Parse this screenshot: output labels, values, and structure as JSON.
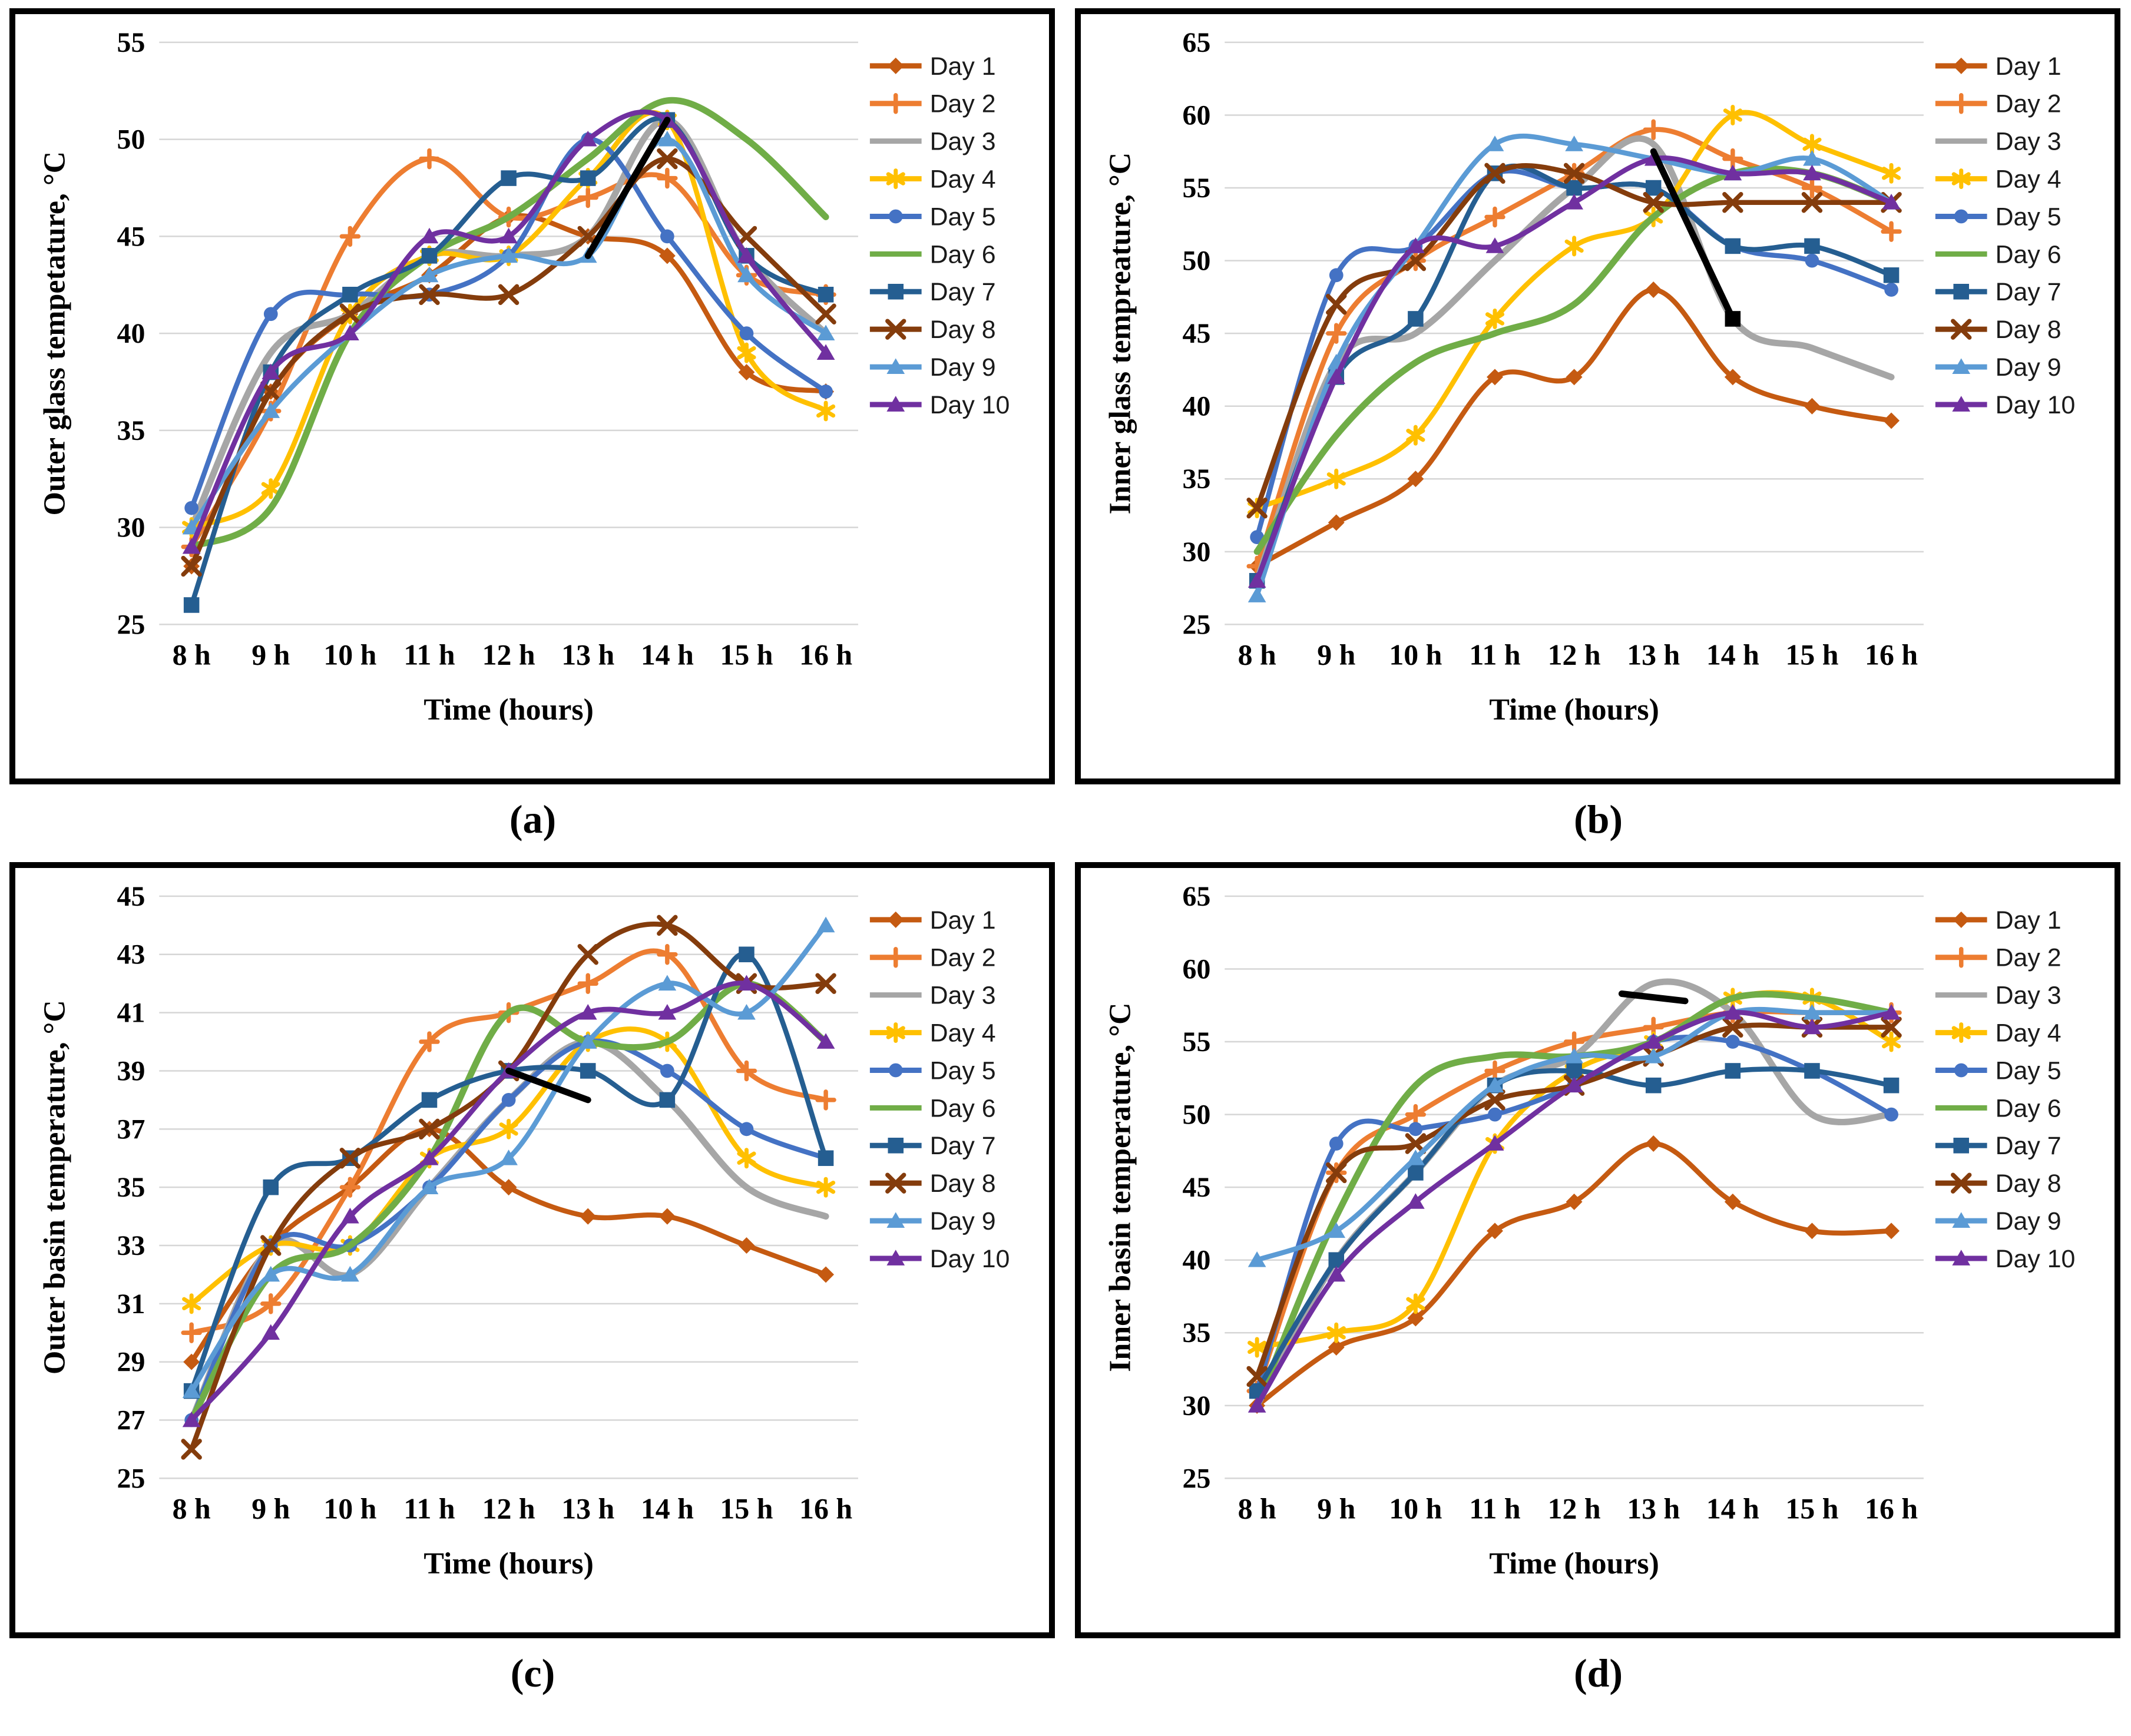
{
  "days": [
    {
      "label": "Day 1",
      "color": "#C55A11",
      "marker": "diamond"
    },
    {
      "label": "Day 2",
      "color": "#ED7D31",
      "marker": "plus"
    },
    {
      "label": "Day 3",
      "color": "#A6A6A6",
      "marker": "none"
    },
    {
      "label": "Day 4",
      "color": "#FFC000",
      "marker": "asterisk"
    },
    {
      "label": "Day 5",
      "color": "#4472C4",
      "marker": "circle"
    },
    {
      "label": "Day 6",
      "color": "#70AD47",
      "marker": "none"
    },
    {
      "label": "Day 7",
      "color": "#255E91",
      "marker": "square"
    },
    {
      "label": "Day 8",
      "color": "#843C0C",
      "marker": "x"
    },
    {
      "label": "Day 9",
      "color": "#5B9BD5",
      "marker": "triangle"
    },
    {
      "label": "Day 10",
      "color": "#7030A0",
      "marker": "triangle"
    }
  ],
  "chart_data": [
    {
      "id": "a",
      "caption": "(a)",
      "type": "line",
      "ylabel": "Outer glass tempetature, °C",
      "xlabel": "Time (hours)",
      "categories": [
        "8 h",
        "9 h",
        "10 h",
        "11 h",
        "12 h",
        "13 h",
        "14 h",
        "15 h",
        "16 h"
      ],
      "ylim": [
        25,
        55
      ],
      "ytick_step": 5,
      "grid": true,
      "legend_position": "right",
      "series": [
        {
          "name": "Day 1",
          "values": [
            28,
            37,
            41,
            43,
            46,
            45,
            44,
            38,
            37
          ]
        },
        {
          "name": "Day 2",
          "values": [
            29,
            36,
            45,
            49,
            46,
            47,
            48,
            43,
            42
          ]
        },
        {
          "name": "Day 3",
          "values": [
            30,
            39,
            41,
            44,
            44,
            45,
            51,
            44,
            40
          ]
        },
        {
          "name": "Day 4",
          "values": [
            30,
            32,
            41,
            44,
            44,
            48,
            51,
            39,
            36
          ]
        },
        {
          "name": "Day 5",
          "values": [
            31,
            41,
            42,
            42,
            44,
            50,
            45,
            40,
            37
          ]
        },
        {
          "name": "Day 6",
          "values": [
            29,
            31,
            40,
            44,
            46,
            49,
            52,
            50,
            46
          ]
        },
        {
          "name": "Day 7",
          "values": [
            26,
            38,
            42,
            44,
            48,
            48,
            51,
            44,
            42
          ]
        },
        {
          "name": "Day 8",
          "values": [
            28,
            37,
            41,
            42,
            42,
            45,
            49,
            45,
            41
          ]
        },
        {
          "name": "Day 9",
          "values": [
            30,
            36,
            40,
            43,
            44,
            44,
            50,
            43,
            40
          ]
        },
        {
          "name": "Day 10",
          "values": [
            29,
            38,
            40,
            45,
            45,
            50,
            51,
            44,
            39
          ]
        }
      ],
      "black_segment": {
        "color": "#000000",
        "points": [
          [
            5,
            44
          ],
          [
            6,
            51
          ]
        ],
        "end_marker": "none"
      }
    },
    {
      "id": "b",
      "caption": "(b)",
      "type": "line",
      "ylabel": "Inner glass tempreature, °C",
      "xlabel": "Time (hours)",
      "categories": [
        "8 h",
        "9 h",
        "10 h",
        "11 h",
        "12 h",
        "13 h",
        "14 h",
        "15 h",
        "16 h"
      ],
      "ylim": [
        25,
        65
      ],
      "ytick_step": 5,
      "grid": true,
      "legend_position": "right",
      "series": [
        {
          "name": "Day 1",
          "values": [
            29,
            32,
            35,
            42,
            42,
            48,
            42,
            40,
            39
          ]
        },
        {
          "name": "Day 2",
          "values": [
            29,
            45,
            50,
            53,
            56,
            59,
            57,
            55,
            52
          ]
        },
        {
          "name": "Day 3",
          "values": [
            28,
            43,
            45,
            50,
            55,
            58,
            46,
            44,
            42
          ]
        },
        {
          "name": "Day 4",
          "values": [
            33,
            35,
            38,
            46,
            51,
            53,
            60,
            58,
            56
          ]
        },
        {
          "name": "Day 5",
          "values": [
            31,
            49,
            51,
            56,
            55,
            55,
            51,
            50,
            48
          ]
        },
        {
          "name": "Day 6",
          "values": [
            30,
            38,
            43,
            45,
            47,
            53,
            56,
            56,
            54
          ]
        },
        {
          "name": "Day 7",
          "values": [
            28,
            42,
            46,
            56,
            55,
            55,
            51,
            51,
            49
          ]
        },
        {
          "name": "Day 8",
          "values": [
            33,
            47,
            50,
            56,
            56,
            54,
            54,
            54,
            54
          ]
        },
        {
          "name": "Day 9",
          "values": [
            27,
            43,
            51,
            58,
            58,
            57,
            56,
            57,
            54
          ]
        },
        {
          "name": "Day 10",
          "values": [
            28,
            42,
            51,
            51,
            54,
            57,
            56,
            56,
            54
          ]
        }
      ],
      "black_segment": {
        "color": "#000000",
        "points": [
          [
            5,
            57.5
          ],
          [
            6,
            46
          ]
        ],
        "end_marker": "square"
      }
    },
    {
      "id": "c",
      "caption": "(c)",
      "type": "line",
      "ylabel": "Outer basin temperature, °C",
      "xlabel": "Time (hours)",
      "categories": [
        "8 h",
        "9 h",
        "10 h",
        "11 h",
        "12 h",
        "13 h",
        "14 h",
        "15 h",
        "16 h"
      ],
      "ylim": [
        25,
        45
      ],
      "ytick_step": 2,
      "grid": true,
      "legend_position": "right",
      "series": [
        {
          "name": "Day 1",
          "values": [
            29,
            33,
            35,
            37,
            35,
            34,
            34,
            33,
            32
          ]
        },
        {
          "name": "Day 2",
          "values": [
            30,
            31,
            35,
            40,
            41,
            42,
            43,
            39,
            38
          ]
        },
        {
          "name": "Day 3",
          "values": [
            27,
            33,
            32,
            35,
            38,
            40,
            38,
            35,
            34
          ]
        },
        {
          "name": "Day 4",
          "values": [
            31,
            33,
            33,
            36,
            37,
            40,
            40,
            36,
            35
          ]
        },
        {
          "name": "Day 5",
          "values": [
            27,
            33,
            33,
            35,
            38,
            40,
            39,
            37,
            36
          ]
        },
        {
          "name": "Day 6",
          "values": [
            27,
            32,
            33,
            36,
            41,
            40,
            40,
            42,
            40
          ]
        },
        {
          "name": "Day 7",
          "values": [
            28,
            35,
            36,
            38,
            39,
            39,
            38,
            43,
            36
          ]
        },
        {
          "name": "Day 8",
          "values": [
            26,
            33,
            36,
            37,
            39,
            43,
            44,
            42,
            42
          ]
        },
        {
          "name": "Day 9",
          "values": [
            28,
            32,
            32,
            35,
            36,
            40,
            42,
            41,
            44
          ]
        },
        {
          "name": "Day 10",
          "values": [
            27,
            30,
            34,
            36,
            39,
            41,
            41,
            42,
            40
          ]
        }
      ],
      "black_segment": {
        "color": "#000000",
        "points": [
          [
            4,
            39
          ],
          [
            5,
            38
          ]
        ],
        "end_marker": "none"
      }
    },
    {
      "id": "d",
      "caption": "(d)",
      "type": "line",
      "ylabel": "Inner basin temperature, °C",
      "xlabel": "Time (hours)",
      "categories": [
        "8 h",
        "9 h",
        "10 h",
        "11 h",
        "12 h",
        "13 h",
        "14 h",
        "15 h",
        "16 h"
      ],
      "ylim": [
        25,
        65
      ],
      "ytick_step": 5,
      "grid": true,
      "legend_position": "right",
      "series": [
        {
          "name": "Day 1",
          "values": [
            30,
            34,
            36,
            42,
            44,
            48,
            44,
            42,
            42
          ]
        },
        {
          "name": "Day 2",
          "values": [
            31,
            46,
            50,
            53,
            55,
            56,
            57,
            57,
            57
          ]
        },
        {
          "name": "Day 3",
          "values": [
            30,
            40,
            46,
            52,
            54,
            59,
            57,
            50,
            50
          ]
        },
        {
          "name": "Day 4",
          "values": [
            34,
            35,
            37,
            48,
            53,
            55,
            58,
            58,
            55
          ]
        },
        {
          "name": "Day 5",
          "values": [
            31,
            48,
            49,
            50,
            52,
            55,
            55,
            53,
            50
          ]
        },
        {
          "name": "Day 6",
          "values": [
            30,
            43,
            52,
            54,
            54,
            55,
            58,
            58,
            57
          ]
        },
        {
          "name": "Day 7",
          "values": [
            31,
            40,
            46,
            52,
            53,
            52,
            53,
            53,
            52
          ]
        },
        {
          "name": "Day 8",
          "values": [
            32,
            46,
            48,
            51,
            52,
            54,
            56,
            56,
            56
          ]
        },
        {
          "name": "Day 9",
          "values": [
            40,
            42,
            47,
            52,
            54,
            54,
            57,
            57,
            57
          ]
        },
        {
          "name": "Day 10",
          "values": [
            30,
            39,
            44,
            48,
            52,
            55,
            57,
            56,
            57
          ]
        }
      ],
      "black_segment": {
        "color": "#000000",
        "points": [
          [
            4.6,
            58.3
          ],
          [
            5.4,
            57.8
          ]
        ],
        "end_marker": "none"
      }
    }
  ]
}
